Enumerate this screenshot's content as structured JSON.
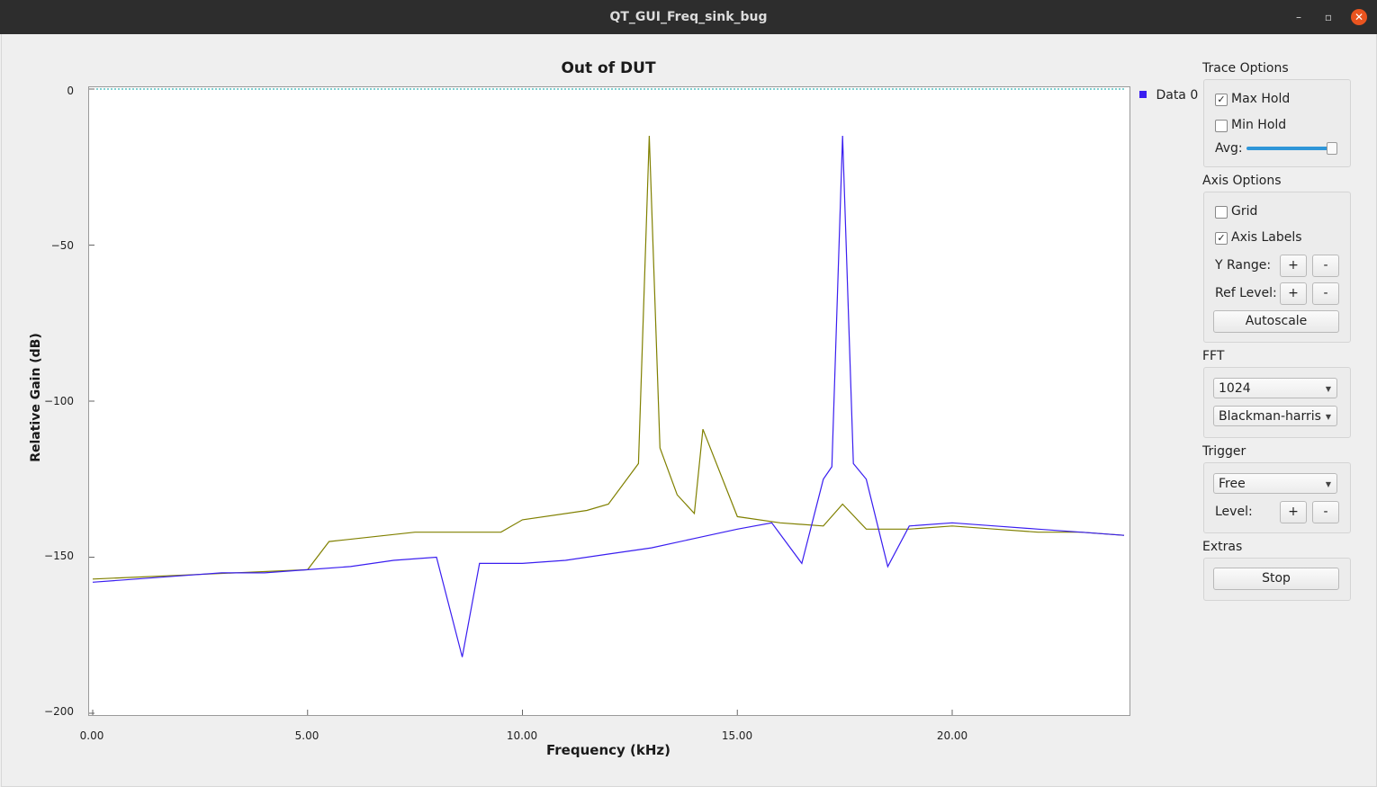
{
  "window": {
    "title": "QT_GUI_Freq_sink_bug",
    "minimize_label": "–",
    "maximize_label": "▫",
    "close_label": "✕"
  },
  "plot": {
    "title": "Out of DUT",
    "xlabel": "Frequency (kHz)",
    "ylabel": "Relative Gain (dB)",
    "yticks": [
      "0",
      "−50",
      "−100",
      "−150",
      "−200"
    ],
    "xticks": [
      "0.00",
      "5.00",
      "10.00",
      "15.00",
      "20.00"
    ],
    "legend": "Data 0"
  },
  "panel": {
    "trace_options": {
      "label": "Trace Options",
      "max_hold": "Max Hold",
      "max_hold_checked": true,
      "min_hold": "Min Hold",
      "min_hold_checked": false,
      "avg": "Avg:",
      "avg_level": 1.0
    },
    "axis_options": {
      "label": "Axis Options",
      "grid": "Grid",
      "grid_checked": false,
      "axis_labels": "Axis Labels",
      "axis_labels_checked": true,
      "y_range": "Y Range:",
      "ref_level": "Ref Level:",
      "plus": "+",
      "minus": "-",
      "autoscale": "Autoscale"
    },
    "fft": {
      "label": "FFT",
      "size": "1024",
      "window": "Blackman-harris"
    },
    "trigger": {
      "label": "Trigger",
      "mode": "Free",
      "level": "Level:"
    },
    "extras": {
      "label": "Extras",
      "stop": "Stop"
    }
  },
  "colors": {
    "trace_data0": "#3a1ef0",
    "trace_maxhold": "#808000",
    "ref_line": "#00a0a0"
  },
  "chart_data": {
    "type": "line",
    "title": "Out of DUT",
    "xlabel": "Frequency (kHz)",
    "ylabel": "Relative Gain (dB)",
    "xlim": [
      0,
      24
    ],
    "ylim": [
      -200,
      0
    ],
    "series": [
      {
        "name": "Data 0",
        "x": [
          0,
          1,
          2,
          3,
          4,
          5,
          6,
          7,
          8,
          8.6,
          9,
          10,
          11,
          12,
          13,
          14,
          15,
          15.8,
          16.5,
          17,
          17.2,
          17.45,
          17.7,
          18,
          18.5,
          19,
          20,
          21,
          22,
          23,
          24
        ],
        "y": [
          -158,
          -157,
          -156,
          -155,
          -155,
          -154,
          -153,
          -151,
          -150,
          -182,
          -152,
          -152,
          -151,
          -149,
          -147,
          -144,
          -141,
          -139,
          -152,
          -125,
          -121,
          -15,
          -120,
          -125,
          -153,
          -140,
          -139,
          -140,
          -141,
          -142,
          -143
        ]
      },
      {
        "x": [
          0,
          5,
          5.5,
          7.5,
          8,
          9.5,
          10,
          11.5,
          12,
          12.7,
          12.95,
          13.2,
          13.6,
          14,
          14.2,
          15,
          16,
          17,
          17.45,
          18,
          19,
          20,
          21,
          22,
          23,
          24
        ],
        "y": [
          -157,
          -154,
          -145,
          -142,
          -142,
          -142,
          -138,
          -135,
          -133,
          -120,
          -15,
          -115,
          -130,
          -136,
          -109,
          -137,
          -139,
          -140,
          -133,
          -141,
          -141,
          -140,
          -141,
          -142,
          -142,
          -143
        ]
      },
      {
        "x": [
          0,
          24
        ],
        "y": [
          0,
          0
        ]
      }
    ]
  }
}
